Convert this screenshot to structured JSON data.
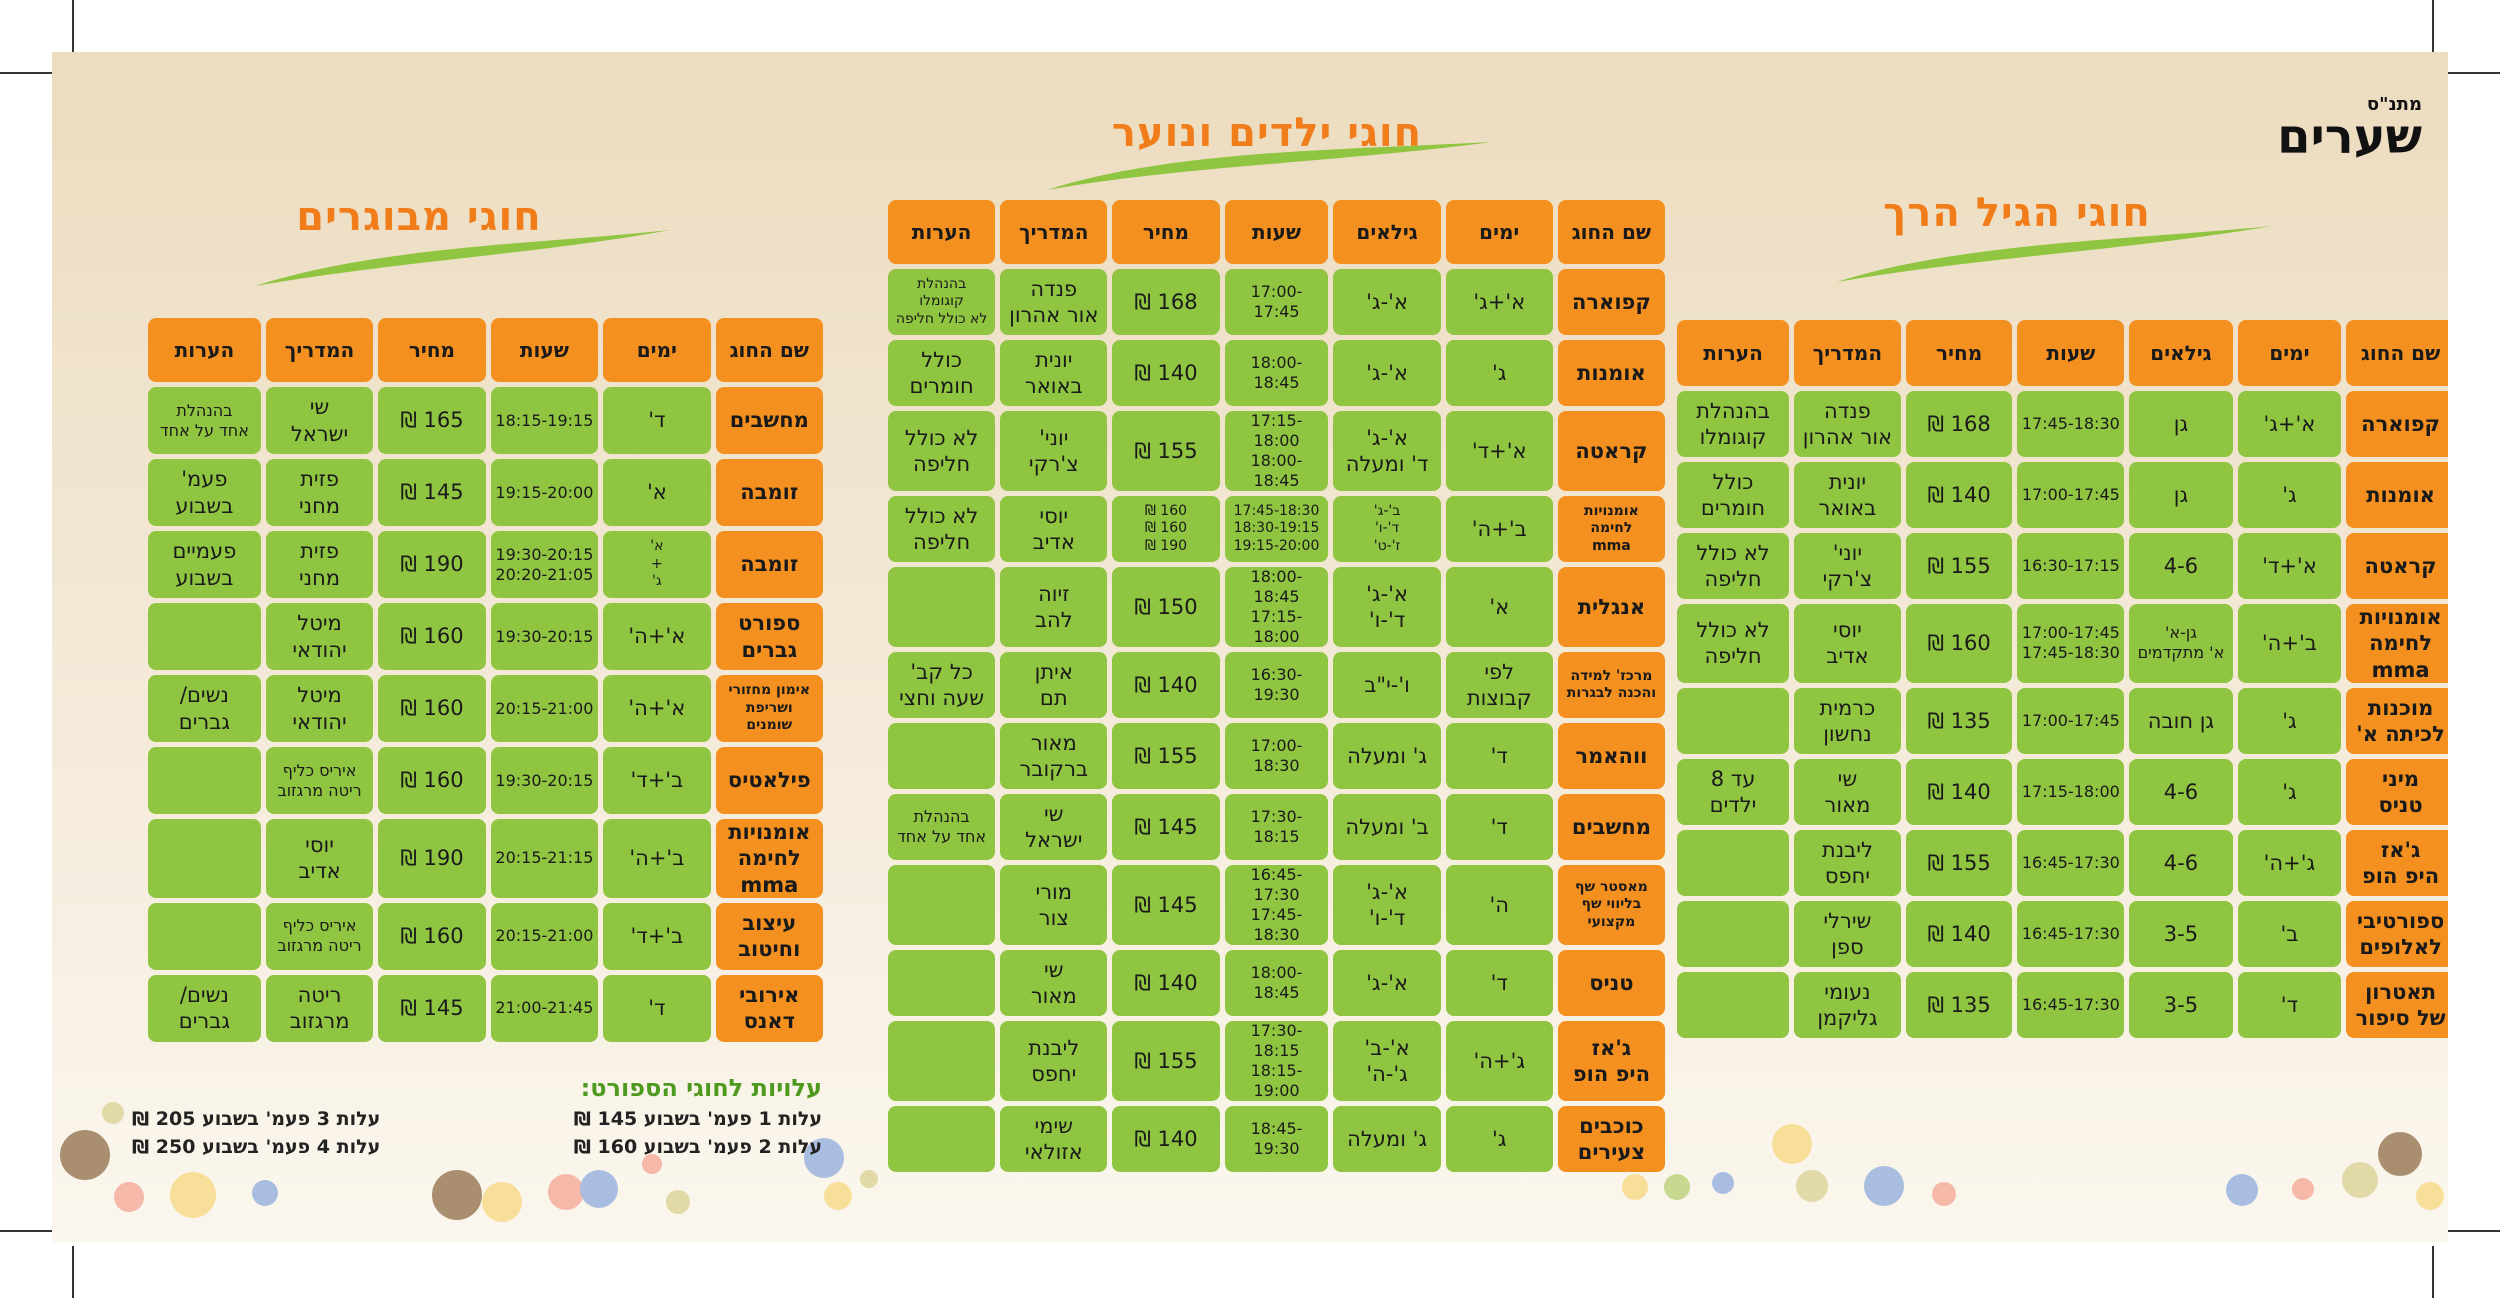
{
  "brand": {
    "logo_small": "מתנ\"ס",
    "logo_main": "שערים",
    "color_orange": "#f4901f",
    "color_green": "#8fc540"
  },
  "senior": {
    "title": "חוגי הגיל הרך",
    "headers": [
      "שם החוג",
      "ימים",
      "גילאים",
      "שעות",
      "מחיר",
      "המדריך",
      "הערות"
    ],
    "rows": [
      [
        "קפוארה",
        "א'+ג'",
        "גן",
        "17:45-18:30",
        "168 ₪",
        "פנדה\nאור אהרון",
        "בהנהלת\nקוגומלו"
      ],
      [
        "אומנות",
        "ג'",
        "גן",
        "17:00-17:45",
        "140 ₪",
        "יונית\nבאואר",
        "כולל\nחומרים"
      ],
      [
        "קראטה",
        "א'+ד'",
        "4-6",
        "16:30-17:15",
        "155 ₪",
        "יוני'\nצ'רקי",
        "לא כולל\nחליפה"
      ],
      [
        "אומנויות\nלחימה mma",
        "ב'+ה'",
        "גן-א'\nא' מתקדמים",
        "17:00-17:45\n17:45-18:30",
        "160 ₪",
        "יוסי\nאדיב",
        "לא כולל\nחליפה"
      ],
      [
        "מוכנות\nלכיתה א'",
        "ג'",
        "גן חובה",
        "17:00-17:45",
        "135 ₪",
        "כרמית\nנחשון",
        ""
      ],
      [
        "מיני\nטניס",
        "ג'",
        "4-6",
        "17:15-18:00",
        "140 ₪",
        "שי\nמאור",
        "עד 8\nילדים"
      ],
      [
        "ג'אז\nהיפ הופ",
        "ג'+ה'",
        "4-6",
        "16:45-17:30",
        "155 ₪",
        "ליבנת\nיחפס",
        ""
      ],
      [
        "ספורטיבי\nלאלופים",
        "ב'",
        "3-5",
        "16:45-17:30",
        "140 ₪",
        "שירלי\nספן",
        ""
      ],
      [
        "תאטרון\nשל סיפור",
        "ד'",
        "3-5",
        "16:45-17:30",
        "135 ₪",
        "נעומי\nגליקמן",
        ""
      ]
    ]
  },
  "kids": {
    "title": "חוגי ילדים ונוער",
    "headers": [
      "שם החוג",
      "ימים",
      "גילאים",
      "שעות",
      "מחיר",
      "המדריך",
      "הערות"
    ],
    "rows": [
      [
        "קפוארה",
        "א'+ג'",
        "א'-ג'",
        "17:00-17:45",
        "168 ₪",
        "פנדה\nאור אהרון",
        "בהנהלת\nקוגומלו\nלא כולל חליפה"
      ],
      [
        "אומנות",
        "ג'",
        "א'-ג'",
        "18:00-18:45",
        "140 ₪",
        "יונית\nבאואר",
        "כולל\nחומרים"
      ],
      [
        "קראטה",
        "א'+ד'",
        "א'-ג'\nד' ומעלה",
        "17:15-18:00\n18:00-18:45",
        "155 ₪",
        "יוני'\nצ'רקי",
        "לא כולל\nחליפה"
      ],
      [
        "אומנויות\nלחימה\nmma",
        "ב'+ה'",
        "ב'-ג'\nד'-ו'\nז'-ט'",
        "17:45-18:30\n18:30-19:15\n19:15-20:00",
        "160 ₪\n160 ₪\n190 ₪",
        "יוסי\nאדיב",
        "לא כולל\nחליפה"
      ],
      [
        "אנגלית",
        "א'",
        "א'-ג'\nד'-ו'",
        "18:00-18:45\n17:15-18:00",
        "150 ₪",
        "זיוה\nלהב",
        ""
      ],
      [
        "מרכז' למידה\nוהכנה לבגרות",
        "לפי\nקבוצות",
        "ו'-י\"ב",
        "16:30-19:30",
        "140 ₪",
        "איתן\nתם",
        "כל קב'\nשעה וחצי"
      ],
      [
        "ווהאמר",
        "ד'",
        "ג' ומעלה",
        "17:00-18:30",
        "155 ₪",
        "מאור\nברקובר",
        ""
      ],
      [
        "מחשבים",
        "ד'",
        "ב' ומעלה",
        "17:30-18:15",
        "145 ₪",
        "שי\nישראל",
        "בהנהלת\nאחד על אחד"
      ],
      [
        "מאסטר שף\nבליווי שף מקצועי",
        "ה'",
        "א'-ג'\nד'-ו'",
        "16:45-17:30\n17:45-18:30",
        "145 ₪",
        "מורי\nצור",
        ""
      ],
      [
        "טניס",
        "ד'",
        "א'-ג'",
        "18:00-18:45",
        "140 ₪",
        "שי\nמאור",
        ""
      ],
      [
        "ג'אז\nהיפ הופ",
        "ג'+ה'",
        "א'-ב'\nג'-ה'",
        "17:30-18:15\n18:15-19:00",
        "155 ₪",
        "ליבנת\nיחפס",
        ""
      ],
      [
        "כוכבים\nצעירים",
        "ג'",
        "ג' ומעלה",
        "18:45-19:30",
        "140 ₪",
        "שימי\nאזולאי",
        ""
      ]
    ]
  },
  "adults": {
    "title": "חוגי מבוגרים",
    "headers": [
      "שם החוג",
      "ימים",
      "שעות",
      "מחיר",
      "המדריך",
      "הערות"
    ],
    "rows": [
      [
        "מחשבים",
        "ד'",
        "18:15-19:15",
        "165 ₪",
        "שי\nישראל",
        "בהנהלת\nאחד על אחד"
      ],
      [
        "זומבה",
        "א'",
        "19:15-20:00",
        "145 ₪",
        "פזית\nמחני",
        "פעמ'\nבשבוע"
      ],
      [
        "זומבה",
        "א'\n+\nג'",
        "19:30-20:15\n20:20-21:05",
        "190 ₪",
        "פזית\nמחני",
        "פעמיים\nבשבוע"
      ],
      [
        "ספורט\nגברים",
        "א'+ה'",
        "19:30-20:15",
        "160 ₪",
        "מיטל\nיהודאי",
        ""
      ],
      [
        "אימון מחזורי\nושריפת\nשומנים",
        "א'+ה'",
        "20:15-21:00",
        "160 ₪",
        "מיטל\nיהודאי",
        "נשים/\nגברים"
      ],
      [
        "פילאטיס",
        "ב'+ד'",
        "19:30-20:15",
        "160 ₪",
        "איריס כליף\nריטה מרגזוב",
        ""
      ],
      [
        "אומנויות\nלחימה mma",
        "ב'+ה'",
        "20:15-21:15",
        "190 ₪",
        "יוסי\nאדיב",
        ""
      ],
      [
        "עיצוב\nוחיטוב",
        "ב'+ד'",
        "20:15-21:00",
        "160 ₪",
        "איריס כליף\nריטה מרגזוב",
        ""
      ],
      [
        "אירובי\nדאנס",
        "ד'",
        "21:00-21:45",
        "145 ₪",
        "ריטה\nמרגזוב",
        "נשים/\nגברים"
      ]
    ]
  },
  "fees": {
    "title": "עלויות לחוגי הספורט:",
    "lines": [
      "עלות 1 פעמ' בשבוע 145 ₪",
      "עלות 2 פעמ' בשבוע 160 ₪",
      "עלות 3 פעמ' בשבוע 205 ₪",
      "עלות 4 פעמ' בשבוע 250 ₪"
    ]
  }
}
